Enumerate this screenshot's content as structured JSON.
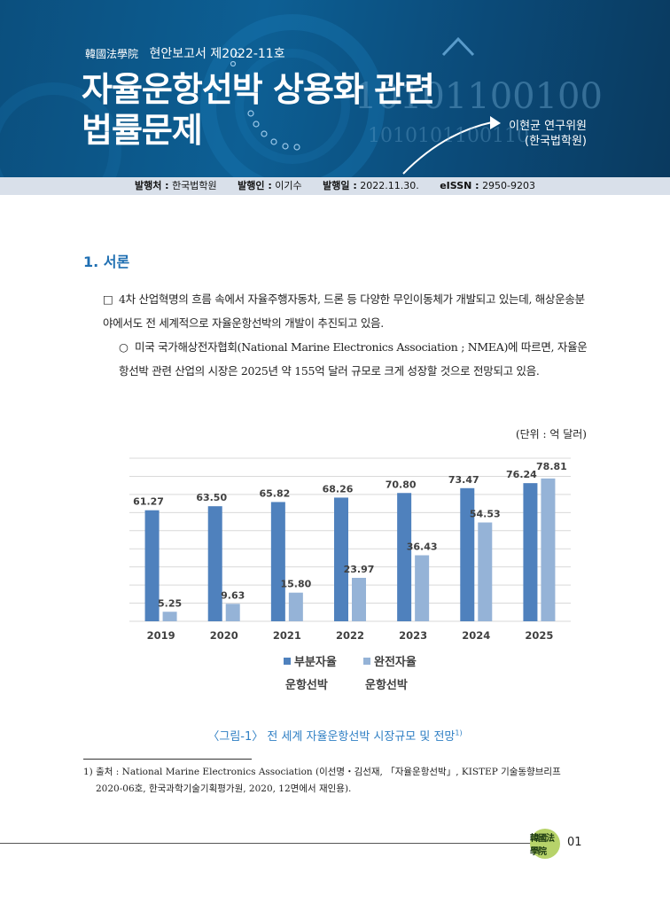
{
  "header": {
    "seal_text": "韓國法學院",
    "series": "현안보고서 제2022-11호",
    "title_line1": "자율운항선박 상용화 관련",
    "title_line2": "법률문제",
    "author_name": "이현균 연구위원",
    "author_org": "(한국법학원)",
    "binary_row1": "10101100100",
    "binary_row2": "1010101100110"
  },
  "publication": {
    "publisher_label": "발행처 :",
    "publisher": "한국법학원",
    "issuer_label": "발행인 :",
    "issuer": "이기수",
    "date_label": "발행일 :",
    "date": "2022.11.30.",
    "issn_label": "eISSN :",
    "issn": "2950-9203"
  },
  "section": {
    "title": "1. 서론"
  },
  "body": {
    "bullet1_mark": "□",
    "bullet1": "4차 산업혁명의 흐름 속에서 자율주행자동차, 드론 등 다양한 무인이동체가 개발되고 있는데, 해상운송분야에서도 전 세계적으로 자율운항선박의 개발이 추진되고 있음.",
    "bullet2_mark": "○",
    "bullet2": "미국 국가해상전자협회(National Marine Electronics Association ; NMEA)에 따르면, 자율운항선박 관련 산업의 시장은 2025년 약 155억 달러 규모로 크게 성장할 것으로 전망되고 있음."
  },
  "figure": {
    "unit": "(단위 : 억 달러)",
    "caption": "〈그림-1〉 전 세계 자율운항선박 시장규모 및 전망",
    "caption_note": "1)"
  },
  "chart_data": {
    "type": "bar",
    "categories": [
      "2019",
      "2020",
      "2021",
      "2022",
      "2023",
      "2024",
      "2025"
    ],
    "series": [
      {
        "name": "부분자율 운항선박",
        "name_line1": "부분자율",
        "name_line2": "운항선박",
        "color": "#4f81bd",
        "values": [
          61.27,
          63.5,
          65.82,
          68.26,
          70.8,
          73.47,
          76.24
        ]
      },
      {
        "name": "완전자율 운항선박",
        "name_line1": "완전자율",
        "name_line2": "운항선박",
        "color": "#95b3d7",
        "values": [
          5.25,
          9.63,
          15.8,
          23.97,
          36.43,
          54.53,
          78.81
        ]
      }
    ],
    "ylim": [
      0,
      90
    ],
    "grid": true,
    "legend_position": "bottom"
  },
  "footnote": {
    "text": "1) 출처 : National Marine Electronics Association (이선명・김선재, 「자율운항선박」, KISTEP 기술동향브리프 2020-06호, 한국과학기술기획평가원, 2020, 12면에서 재인용)."
  },
  "footer": {
    "logo_text": "韓國法學院",
    "page_number": "01"
  }
}
